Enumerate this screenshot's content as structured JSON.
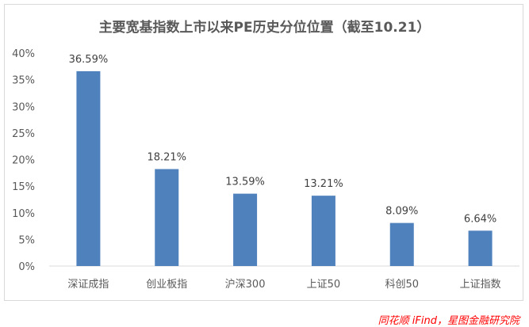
{
  "chart_data": {
    "type": "bar",
    "title": "主要宽基指数上市以来PE历史分位位置（截至10.21）",
    "categories": [
      "深证成指",
      "创业板指",
      "沪深300",
      "上证50",
      "科创50",
      "上证指数"
    ],
    "values": [
      36.59,
      18.21,
      13.59,
      13.21,
      8.09,
      6.64
    ],
    "data_labels": [
      "36.59%",
      "18.21%",
      "13.59%",
      "13.21%",
      "8.09%",
      "6.64%"
    ],
    "yticks": [
      "0%",
      "5%",
      "10%",
      "15%",
      "20%",
      "25%",
      "30%",
      "35%",
      "40%"
    ],
    "ylim": [
      0,
      40
    ],
    "unit": "%",
    "grid": false,
    "legend": "none",
    "bar_color": "#4f81bd"
  },
  "source": "同花顺 iFind，星图金融研究院"
}
